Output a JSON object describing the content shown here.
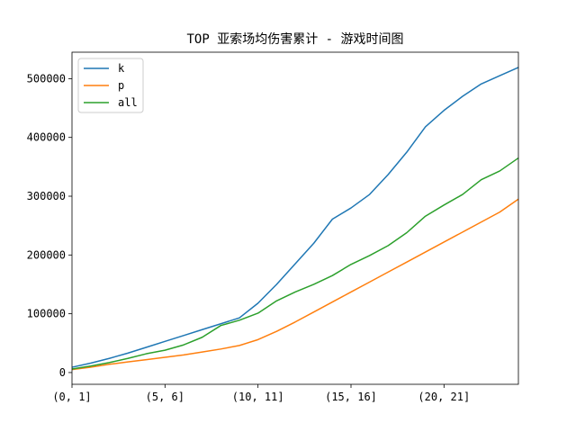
{
  "chart_data": {
    "type": "line",
    "title": "TOP 亚索场均伤害累计 - 游戏时间图",
    "xlabel": "",
    "ylabel": "",
    "x_tick_labels": [
      "(0, 1]",
      "(5, 6]",
      "(10, 11]",
      "(15, 16]",
      "(20, 21]"
    ],
    "x_tick_positions": [
      0,
      5,
      10,
      15,
      20
    ],
    "xlim": [
      0,
      24
    ],
    "ylim": [
      -20000,
      545000
    ],
    "y_ticks": [
      0,
      100000,
      200000,
      300000,
      400000,
      500000
    ],
    "y_tick_labels": [
      "0",
      "100000",
      "200000",
      "300000",
      "400000",
      "500000"
    ],
    "x": [
      0,
      1,
      2,
      3,
      4,
      5,
      6,
      7,
      8,
      9,
      10,
      11,
      12,
      13,
      14,
      15,
      16,
      17,
      18,
      19,
      20,
      21,
      22,
      23,
      24
    ],
    "series": [
      {
        "name": "k",
        "color": "#1f77b4",
        "values": [
          9000,
          16000,
          24000,
          33000,
          43000,
          53000,
          63000,
          73000,
          83000,
          93000,
          118000,
          150000,
          185000,
          220000,
          261000,
          280000,
          303000,
          337000,
          375000,
          418000,
          446000,
          470000,
          491000,
          505000,
          519000
        ]
      },
      {
        "name": "p",
        "color": "#ff7f0e",
        "values": [
          5000,
          9000,
          14000,
          18000,
          22000,
          26000,
          30000,
          35000,
          40000,
          46000,
          56000,
          70000,
          86000,
          103000,
          120000,
          137000,
          154000,
          171000,
          188000,
          205000,
          222000,
          239000,
          256000,
          273000,
          295000
        ]
      },
      {
        "name": "all",
        "color": "#2ca02c",
        "values": [
          6000,
          11000,
          17000,
          24000,
          32000,
          38000,
          47000,
          60000,
          80000,
          89000,
          101000,
          122000,
          137000,
          150000,
          165000,
          184000,
          199000,
          216000,
          238000,
          266000,
          285000,
          303000,
          328000,
          343000,
          365000
        ]
      }
    ],
    "legend_position": "upper-left",
    "grid": false
  }
}
